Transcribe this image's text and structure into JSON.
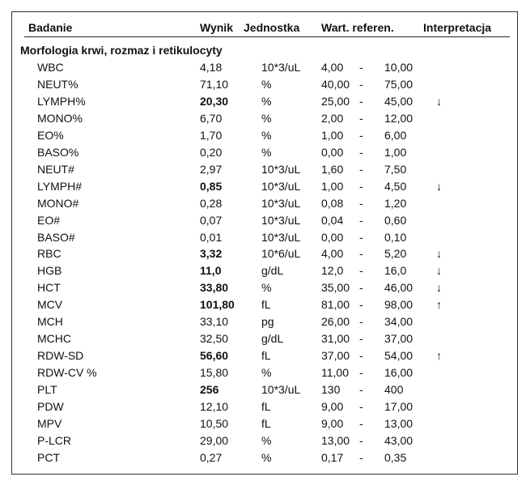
{
  "header": {
    "columns": [
      "Badanie",
      "Wynik",
      "Jednostka",
      "Wart. referen.",
      "Interpretacja"
    ]
  },
  "section": {
    "title": "Morfologia krwi, rozmaz i retikulocyty"
  },
  "ref_separator": "-",
  "rows": [
    {
      "name": "WBC",
      "result": "4,18",
      "unit": "10*3/uL",
      "ref_low": "4,00",
      "ref_high": "10,00",
      "flag": null,
      "bold": false
    },
    {
      "name": "NEUT%",
      "result": "71,10",
      "unit": "%",
      "ref_low": "40,00",
      "ref_high": "75,00",
      "flag": null,
      "bold": false
    },
    {
      "name": "LYMPH%",
      "result": "20,30",
      "unit": "%",
      "ref_low": "25,00",
      "ref_high": "45,00",
      "flag": "↓",
      "bold": true
    },
    {
      "name": "MONO%",
      "result": "6,70",
      "unit": "%",
      "ref_low": "2,00",
      "ref_high": "12,00",
      "flag": null,
      "bold": false
    },
    {
      "name": "EO%",
      "result": "1,70",
      "unit": "%",
      "ref_low": "1,00",
      "ref_high": "6,00",
      "flag": null,
      "bold": false
    },
    {
      "name": "BASO%",
      "result": "0,20",
      "unit": "%",
      "ref_low": "0,00",
      "ref_high": "1,00",
      "flag": null,
      "bold": false
    },
    {
      "name": "NEUT#",
      "result": "2,97",
      "unit": "10*3/uL",
      "ref_low": "1,60",
      "ref_high": "7,50",
      "flag": null,
      "bold": false
    },
    {
      "name": "LYMPH#",
      "result": "0,85",
      "unit": "10*3/uL",
      "ref_low": "1,00",
      "ref_high": "4,50",
      "flag": "↓",
      "bold": true
    },
    {
      "name": "MONO#",
      "result": "0,28",
      "unit": "10*3/uL",
      "ref_low": "0,08",
      "ref_high": "1,20",
      "flag": null,
      "bold": false
    },
    {
      "name": "EO#",
      "result": "0,07",
      "unit": "10*3/uL",
      "ref_low": "0,04",
      "ref_high": "0,60",
      "flag": null,
      "bold": false
    },
    {
      "name": "BASO#",
      "result": "0,01",
      "unit": "10*3/uL",
      "ref_low": "0,00",
      "ref_high": "0,10",
      "flag": null,
      "bold": false
    },
    {
      "name": "RBC",
      "result": "3,32",
      "unit": "10*6/uL",
      "ref_low": "4,00",
      "ref_high": "5,20",
      "flag": "↓",
      "bold": true
    },
    {
      "name": "HGB",
      "result": "11,0",
      "unit": "g/dL",
      "ref_low": "12,0",
      "ref_high": "16,0",
      "flag": "↓",
      "bold": true
    },
    {
      "name": "HCT",
      "result": "33,80",
      "unit": "%",
      "ref_low": "35,00",
      "ref_high": "46,00",
      "flag": "↓",
      "bold": true
    },
    {
      "name": "MCV",
      "result": "101,80",
      "unit": "fL",
      "ref_low": "81,00",
      "ref_high": "98,00",
      "flag": "↑",
      "bold": true
    },
    {
      "name": "MCH",
      "result": "33,10",
      "unit": "pg",
      "ref_low": "26,00",
      "ref_high": "34,00",
      "flag": null,
      "bold": false
    },
    {
      "name": "MCHC",
      "result": "32,50",
      "unit": "g/dL",
      "ref_low": "31,00",
      "ref_high": "37,00",
      "flag": null,
      "bold": false
    },
    {
      "name": "RDW-SD",
      "result": "56,60",
      "unit": "fL",
      "ref_low": "37,00",
      "ref_high": "54,00",
      "flag": "↑",
      "bold": true
    },
    {
      "name": "RDW-CV %",
      "result": "15,80",
      "unit": "%",
      "ref_low": "11,00",
      "ref_high": "16,00",
      "flag": null,
      "bold": false
    },
    {
      "name": "PLT",
      "result": "256",
      "unit": "10*3/uL",
      "ref_low": "130",
      "ref_high": "400",
      "flag": null,
      "bold": true
    },
    {
      "name": "PDW",
      "result": "12,10",
      "unit": "fL",
      "ref_low": "9,00",
      "ref_high": "17,00",
      "flag": null,
      "bold": false
    },
    {
      "name": "MPV",
      "result": "10,50",
      "unit": "fL",
      "ref_low": "9,00",
      "ref_high": "13,00",
      "flag": null,
      "bold": false
    },
    {
      "name": "P-LCR",
      "result": "29,00",
      "unit": "%",
      "ref_low": "13,00",
      "ref_high": "43,00",
      "flag": null,
      "bold": false
    },
    {
      "name": "PCT",
      "result": "0,27",
      "unit": "%",
      "ref_low": "0,17",
      "ref_high": "0,35",
      "flag": null,
      "bold": false
    }
  ]
}
